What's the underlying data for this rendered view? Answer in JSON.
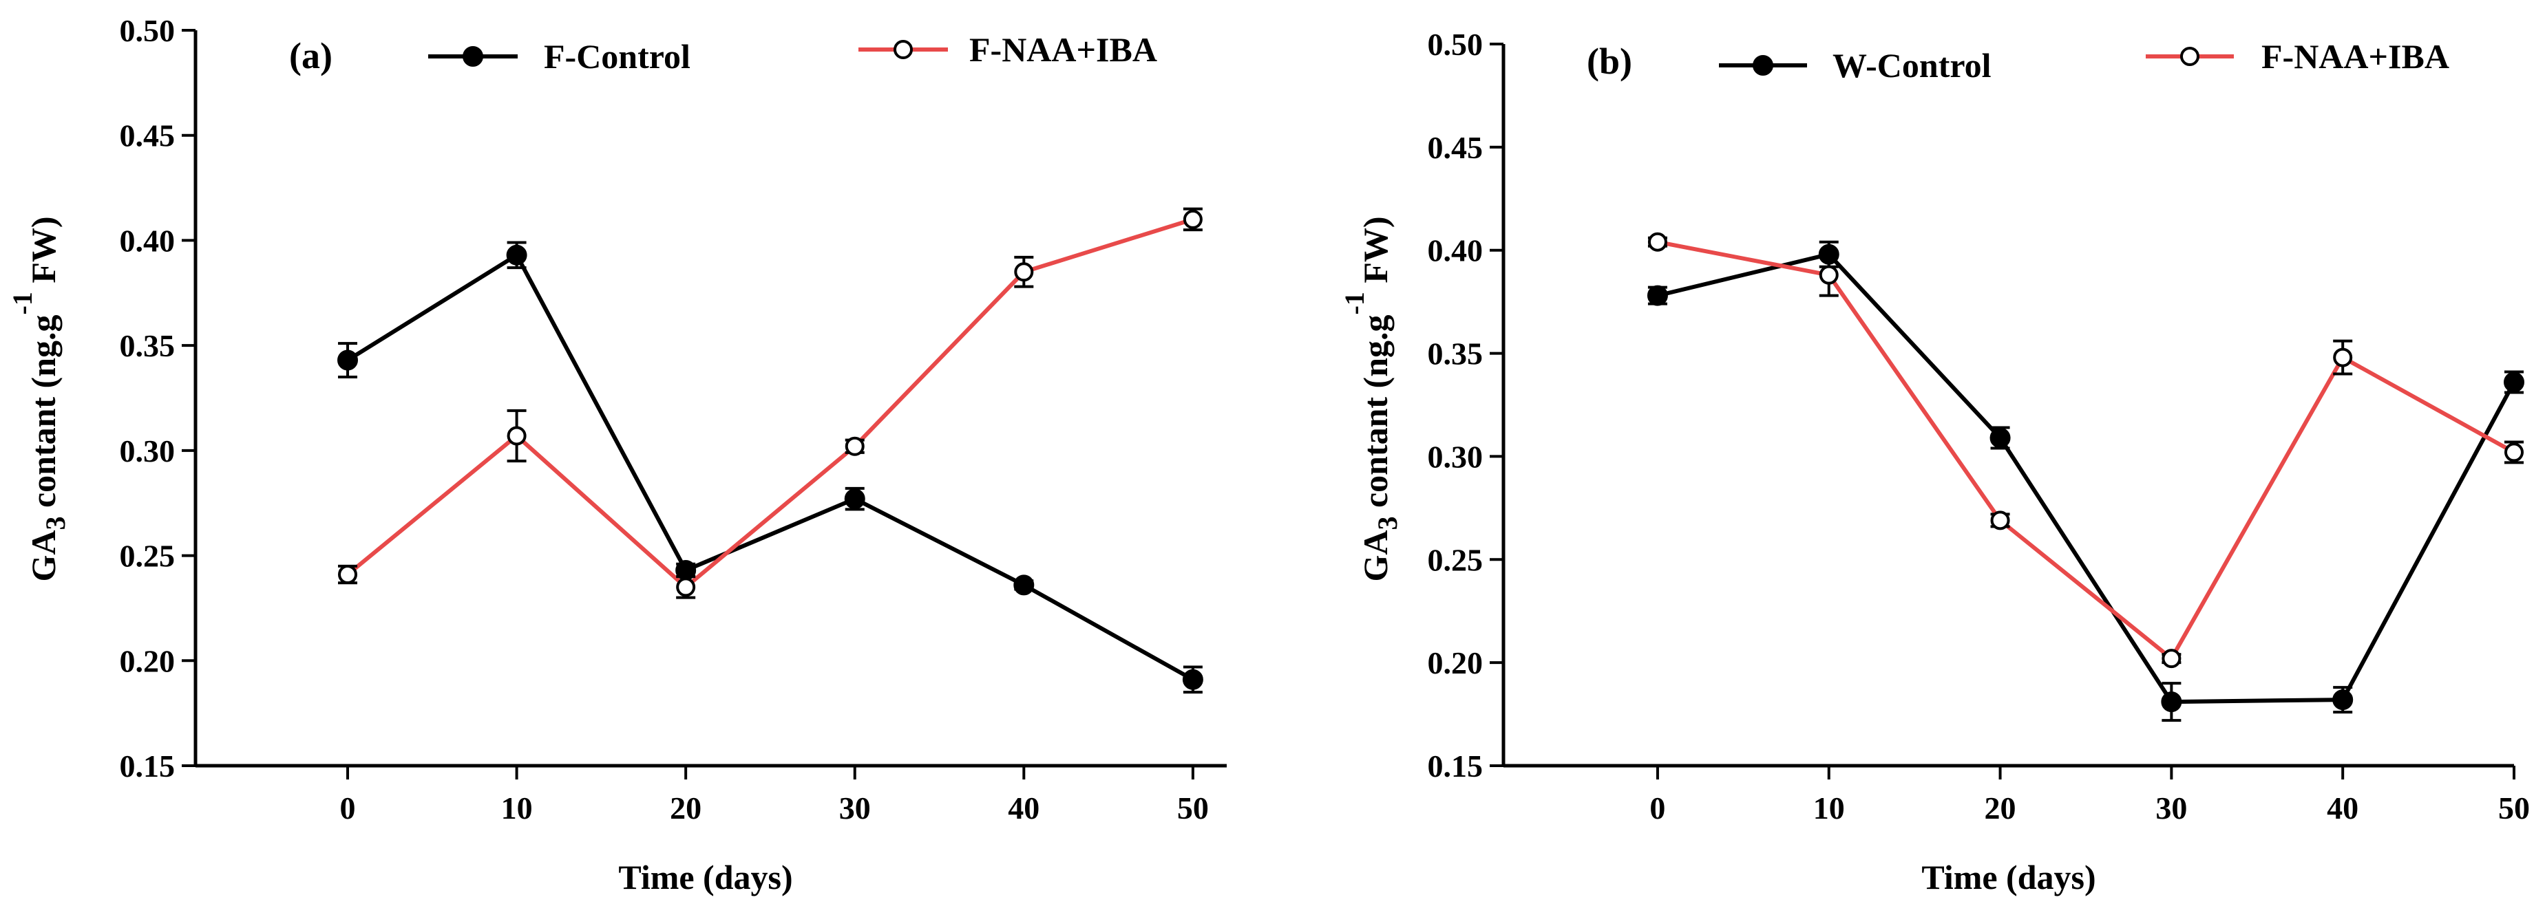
{
  "chart_data": [
    {
      "type": "line",
      "panel_label": "(a)",
      "x": [
        0,
        10,
        20,
        30,
        40,
        50
      ],
      "xlabel": "Time (days)",
      "ylabel_prefix": "GA",
      "ylabel_sub": "3",
      "ylabel_mid": " contant (ng.g",
      "ylabel_sup": "-1",
      "ylabel_suffix": " FW)",
      "xlim": [
        -9,
        52
      ],
      "ylim": [
        0.15,
        0.5
      ],
      "xticks": [
        "0",
        "10",
        "20",
        "30",
        "40",
        "50"
      ],
      "yticks": [
        "0.15",
        "0.20",
        "0.25",
        "0.30",
        "0.35",
        "0.40",
        "0.45",
        "0.50"
      ],
      "grid": false,
      "legend_position": "top",
      "series": [
        {
          "name": "F-Control",
          "color": "#000000",
          "marker": "filled-circle",
          "values": [
            0.343,
            0.393,
            0.243,
            0.277,
            0.236,
            0.191
          ],
          "errors": [
            0.008,
            0.006,
            0.003,
            0.005,
            0.002,
            0.006
          ]
        },
        {
          "name": "F-NAA+IBA",
          "color": "#e84a4a",
          "marker": "open-circle",
          "values": [
            0.241,
            0.307,
            0.235,
            0.302,
            0.385,
            0.41
          ],
          "errors": [
            0.004,
            0.012,
            0.005,
            0.003,
            0.007,
            0.005
          ]
        }
      ]
    },
    {
      "type": "line",
      "panel_label": "(b)",
      "x": [
        0,
        10,
        20,
        30,
        40,
        50
      ],
      "xlabel": "Time (days)",
      "ylabel_prefix": "GA",
      "ylabel_sub": "3",
      "ylabel_mid": " contant (ng.g",
      "ylabel_sup": "-1",
      "ylabel_suffix": " FW)",
      "xlim": [
        -9,
        50
      ],
      "ylim": [
        0.15,
        0.5
      ],
      "xticks": [
        "0",
        "10",
        "20",
        "30",
        "40",
        "50"
      ],
      "yticks": [
        "0.15",
        "0.20",
        "0.25",
        "0.30",
        "0.35",
        "0.40",
        "0.45",
        "0.50"
      ],
      "grid": false,
      "legend_position": "top",
      "series": [
        {
          "name": "W-Control",
          "color": "#000000",
          "marker": "filled-circle",
          "values": [
            0.378,
            0.398,
            0.309,
            0.181,
            0.182,
            0.336
          ],
          "errors": [
            0.004,
            0.006,
            0.005,
            0.009,
            0.006,
            0.005
          ]
        },
        {
          "name": "F-NAA+IBA",
          "color": "#e84a4a",
          "marker": "open-circle",
          "values": [
            0.404,
            0.388,
            0.269,
            0.202,
            0.348,
            0.302
          ],
          "errors": [
            0.002,
            0.01,
            0.003,
            0.002,
            0.008,
            0.005
          ]
        }
      ]
    }
  ]
}
